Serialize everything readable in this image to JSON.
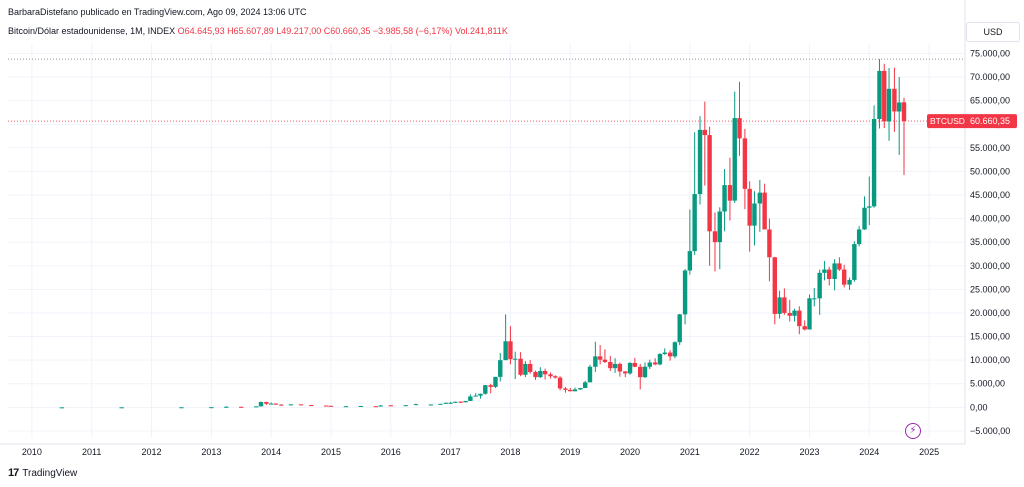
{
  "header": {
    "author_line": "BarbaraDistefano publicado en TradingView.com, Ago 09, 2024 13:06 UTC"
  },
  "legend": {
    "symbol": "Bitcoin/Dólar estadounidense, 1M, INDEX",
    "open": "O64.645,93",
    "high": "H65.607,89",
    "low": "L49.217,00",
    "close": "C60.660,35",
    "change": "−3.985,58 (−6,17%)",
    "volume": "Vol.241,811K"
  },
  "currency_button": "USD",
  "footer": {
    "brand": "TradingView",
    "logo_glyph": "17"
  },
  "price_tag": {
    "label": "BTCUSD",
    "value": "60.660,35",
    "price": 60660
  },
  "colors": {
    "up": "#089981",
    "down": "#f23645",
    "grid": "#f0f3fa",
    "axis_text": "#131722",
    "accent": "#9c27b0"
  },
  "icons": {
    "alert": "lightning-bolt-icon"
  },
  "chart_data": {
    "type": "candlestick",
    "symbol": "BTCUSD",
    "interval": "1M",
    "y_ticks": [
      75000,
      70000,
      65000,
      60000,
      55000,
      50000,
      45000,
      40000,
      35000,
      30000,
      25000,
      20000,
      15000,
      10000,
      5000,
      0,
      -5000
    ],
    "y_tick_labels": [
      "75.000,00",
      "70.000,00",
      "65.000,00",
      "60.000,00",
      "55.000,00",
      "50.000,00",
      "45.000,00",
      "40.000,00",
      "35.000,00",
      "30.000,00",
      "25.000,00",
      "20.000,00",
      "15.000,00",
      "10.000,00",
      "5.000,00",
      "0,00",
      "−5.000,00"
    ],
    "x_ticks": [
      2010,
      2011,
      2012,
      2013,
      2014,
      2015,
      2016,
      2017,
      2018,
      2019,
      2020,
      2021,
      2022,
      2023,
      2024,
      2025
    ],
    "x_tick_labels": [
      "2010",
      "2011",
      "2012",
      "2013",
      "2014",
      "2015",
      "2016",
      "2017",
      "2018",
      "2019",
      "2020",
      "2021",
      "2022",
      "2023",
      "2024",
      "2025"
    ],
    "ylim": [
      -6500,
      77000
    ],
    "xlim": [
      2009.6,
      2025.6
    ],
    "high_line": 73800,
    "candles": [
      {
        "t": 2010.5,
        "o": 0,
        "h": 0,
        "l": 0,
        "c": 0
      },
      {
        "t": 2011.5,
        "o": 1,
        "h": 30,
        "l": 1,
        "c": 5
      },
      {
        "t": 2012.5,
        "o": 5,
        "h": 15,
        "l": 4,
        "c": 13
      },
      {
        "t": 2013.0,
        "o": 13,
        "h": 35,
        "l": 13,
        "c": 33
      },
      {
        "t": 2013.25,
        "o": 93,
        "h": 260,
        "l": 50,
        "c": 120
      },
      {
        "t": 2013.5,
        "o": 110,
        "h": 130,
        "l": 65,
        "c": 100
      },
      {
        "t": 2013.75,
        "o": 140,
        "h": 230,
        "l": 120,
        "c": 200
      },
      {
        "t": 2013.83,
        "o": 200,
        "h": 1240,
        "l": 190,
        "c": 1130
      },
      {
        "t": 2013.92,
        "o": 1130,
        "h": 1165,
        "l": 520,
        "c": 750
      },
      {
        "t": 2014.0,
        "o": 750,
        "h": 1020,
        "l": 700,
        "c": 800
      },
      {
        "t": 2014.08,
        "o": 800,
        "h": 860,
        "l": 530,
        "c": 570
      },
      {
        "t": 2014.17,
        "o": 570,
        "h": 700,
        "l": 440,
        "c": 450
      },
      {
        "t": 2014.33,
        "o": 450,
        "h": 640,
        "l": 430,
        "c": 630
      },
      {
        "t": 2014.5,
        "o": 630,
        "h": 650,
        "l": 580,
        "c": 590
      },
      {
        "t": 2014.67,
        "o": 480,
        "h": 500,
        "l": 380,
        "c": 390
      },
      {
        "t": 2014.92,
        "o": 380,
        "h": 390,
        "l": 300,
        "c": 320
      },
      {
        "t": 2015.0,
        "o": 320,
        "h": 320,
        "l": 170,
        "c": 220
      },
      {
        "t": 2015.25,
        "o": 240,
        "h": 260,
        "l": 220,
        "c": 240
      },
      {
        "t": 2015.5,
        "o": 260,
        "h": 300,
        "l": 250,
        "c": 285
      },
      {
        "t": 2015.75,
        "o": 240,
        "h": 250,
        "l": 230,
        "c": 235
      },
      {
        "t": 2015.83,
        "o": 310,
        "h": 500,
        "l": 300,
        "c": 380
      },
      {
        "t": 2016.0,
        "o": 430,
        "h": 460,
        "l": 360,
        "c": 370
      },
      {
        "t": 2016.25,
        "o": 420,
        "h": 460,
        "l": 410,
        "c": 450
      },
      {
        "t": 2016.42,
        "o": 530,
        "h": 780,
        "l": 520,
        "c": 670
      },
      {
        "t": 2016.67,
        "o": 610,
        "h": 630,
        "l": 570,
        "c": 610
      },
      {
        "t": 2016.83,
        "o": 700,
        "h": 750,
        "l": 690,
        "c": 740
      },
      {
        "t": 2016.92,
        "o": 740,
        "h": 980,
        "l": 730,
        "c": 960
      },
      {
        "t": 2017.0,
        "o": 960,
        "h": 1150,
        "l": 750,
        "c": 970
      },
      {
        "t": 2017.08,
        "o": 970,
        "h": 1200,
        "l": 920,
        "c": 1190
      },
      {
        "t": 2017.17,
        "o": 1190,
        "h": 1290,
        "l": 890,
        "c": 1070
      },
      {
        "t": 2017.25,
        "o": 1070,
        "h": 1350,
        "l": 1060,
        "c": 1350
      },
      {
        "t": 2017.33,
        "o": 1350,
        "h": 2760,
        "l": 1340,
        "c": 2300
      },
      {
        "t": 2017.42,
        "o": 2300,
        "h": 2980,
        "l": 2300,
        "c": 2480
      },
      {
        "t": 2017.5,
        "o": 2480,
        "h": 2920,
        "l": 1830,
        "c": 2870
      },
      {
        "t": 2017.58,
        "o": 2870,
        "h": 4750,
        "l": 2700,
        "c": 4700
      },
      {
        "t": 2017.67,
        "o": 4700,
        "h": 4980,
        "l": 2970,
        "c": 4340
      },
      {
        "t": 2017.75,
        "o": 4340,
        "h": 6470,
        "l": 4100,
        "c": 6450
      },
      {
        "t": 2017.83,
        "o": 6450,
        "h": 11500,
        "l": 5500,
        "c": 10000
      },
      {
        "t": 2017.92,
        "o": 10000,
        "h": 19700,
        "l": 10000,
        "c": 14000
      },
      {
        "t": 2018.0,
        "o": 14000,
        "h": 17200,
        "l": 9100,
        "c": 10200
      },
      {
        "t": 2018.08,
        "o": 10200,
        "h": 11800,
        "l": 6000,
        "c": 10300
      },
      {
        "t": 2018.17,
        "o": 10300,
        "h": 11700,
        "l": 6600,
        "c": 6900
      },
      {
        "t": 2018.25,
        "o": 6900,
        "h": 9800,
        "l": 6400,
        "c": 9200
      },
      {
        "t": 2018.33,
        "o": 9200,
        "h": 10000,
        "l": 7100,
        "c": 7500
      },
      {
        "t": 2018.42,
        "o": 7500,
        "h": 7800,
        "l": 5800,
        "c": 6400
      },
      {
        "t": 2018.5,
        "o": 6400,
        "h": 8500,
        "l": 6200,
        "c": 7700
      },
      {
        "t": 2018.58,
        "o": 7700,
        "h": 8200,
        "l": 5900,
        "c": 7000
      },
      {
        "t": 2018.67,
        "o": 7000,
        "h": 7400,
        "l": 6100,
        "c": 6600
      },
      {
        "t": 2018.75,
        "o": 6600,
        "h": 6800,
        "l": 6100,
        "c": 6300
      },
      {
        "t": 2018.83,
        "o": 6300,
        "h": 6600,
        "l": 3600,
        "c": 4000
      },
      {
        "t": 2018.92,
        "o": 4000,
        "h": 4300,
        "l": 3100,
        "c": 3700
      },
      {
        "t": 2019.0,
        "o": 3700,
        "h": 4100,
        "l": 3400,
        "c": 3400
      },
      {
        "t": 2019.08,
        "o": 3400,
        "h": 4200,
        "l": 3400,
        "c": 3800
      },
      {
        "t": 2019.17,
        "o": 3800,
        "h": 4100,
        "l": 3700,
        "c": 4100
      },
      {
        "t": 2019.25,
        "o": 4100,
        "h": 5600,
        "l": 4100,
        "c": 5300
      },
      {
        "t": 2019.33,
        "o": 5300,
        "h": 9000,
        "l": 5300,
        "c": 8600
      },
      {
        "t": 2019.42,
        "o": 8600,
        "h": 13900,
        "l": 7500,
        "c": 10800
      },
      {
        "t": 2019.5,
        "o": 10800,
        "h": 13200,
        "l": 9100,
        "c": 10100
      },
      {
        "t": 2019.58,
        "o": 10100,
        "h": 12300,
        "l": 9400,
        "c": 9600
      },
      {
        "t": 2019.67,
        "o": 9600,
        "h": 10900,
        "l": 7700,
        "c": 8300
      },
      {
        "t": 2019.75,
        "o": 8300,
        "h": 10400,
        "l": 7300,
        "c": 9200
      },
      {
        "t": 2019.83,
        "o": 9200,
        "h": 9500,
        "l": 6500,
        "c": 7600
      },
      {
        "t": 2019.92,
        "o": 7600,
        "h": 7700,
        "l": 6400,
        "c": 7200
      },
      {
        "t": 2020.0,
        "o": 7200,
        "h": 9600,
        "l": 6900,
        "c": 9400
      },
      {
        "t": 2020.08,
        "o": 9400,
        "h": 10500,
        "l": 8500,
        "c": 8600
      },
      {
        "t": 2020.17,
        "o": 8600,
        "h": 9200,
        "l": 3800,
        "c": 6400
      },
      {
        "t": 2020.25,
        "o": 6400,
        "h": 9500,
        "l": 6200,
        "c": 8600
      },
      {
        "t": 2020.33,
        "o": 8600,
        "h": 10100,
        "l": 8100,
        "c": 9500
      },
      {
        "t": 2020.42,
        "o": 9500,
        "h": 10400,
        "l": 8900,
        "c": 9100
      },
      {
        "t": 2020.5,
        "o": 9100,
        "h": 11500,
        "l": 8900,
        "c": 11300
      },
      {
        "t": 2020.58,
        "o": 11300,
        "h": 12500,
        "l": 11100,
        "c": 11600
      },
      {
        "t": 2020.67,
        "o": 11600,
        "h": 12100,
        "l": 9900,
        "c": 10800
      },
      {
        "t": 2020.75,
        "o": 10800,
        "h": 14000,
        "l": 10400,
        "c": 13800
      },
      {
        "t": 2020.83,
        "o": 13800,
        "h": 19800,
        "l": 13200,
        "c": 19700
      },
      {
        "t": 2020.92,
        "o": 19700,
        "h": 29300,
        "l": 17600,
        "c": 29000
      },
      {
        "t": 2021.0,
        "o": 29000,
        "h": 41900,
        "l": 28100,
        "c": 33100
      },
      {
        "t": 2021.08,
        "o": 33100,
        "h": 58300,
        "l": 32300,
        "c": 45200
      },
      {
        "t": 2021.17,
        "o": 45200,
        "h": 61700,
        "l": 43000,
        "c": 58800
      },
      {
        "t": 2021.25,
        "o": 58800,
        "h": 64800,
        "l": 47000,
        "c": 57700
      },
      {
        "t": 2021.33,
        "o": 57700,
        "h": 59500,
        "l": 30000,
        "c": 37300
      },
      {
        "t": 2021.42,
        "o": 37300,
        "h": 41300,
        "l": 28800,
        "c": 35000
      },
      {
        "t": 2021.5,
        "o": 35000,
        "h": 42400,
        "l": 29300,
        "c": 41500
      },
      {
        "t": 2021.58,
        "o": 41500,
        "h": 50500,
        "l": 37300,
        "c": 47100
      },
      {
        "t": 2021.67,
        "o": 47100,
        "h": 52900,
        "l": 39600,
        "c": 43800
      },
      {
        "t": 2021.75,
        "o": 43800,
        "h": 66900,
        "l": 43300,
        "c": 61300
      },
      {
        "t": 2021.83,
        "o": 61300,
        "h": 69000,
        "l": 53300,
        "c": 57000
      },
      {
        "t": 2021.92,
        "o": 57000,
        "h": 59000,
        "l": 42000,
        "c": 46300
      },
      {
        "t": 2022.0,
        "o": 46300,
        "h": 47900,
        "l": 33000,
        "c": 38500
      },
      {
        "t": 2022.08,
        "o": 38500,
        "h": 45800,
        "l": 34300,
        "c": 43200
      },
      {
        "t": 2022.17,
        "o": 43200,
        "h": 48200,
        "l": 37200,
        "c": 45500
      },
      {
        "t": 2022.25,
        "o": 45500,
        "h": 47400,
        "l": 37700,
        "c": 37700
      },
      {
        "t": 2022.33,
        "o": 37700,
        "h": 40000,
        "l": 26700,
        "c": 31800
      },
      {
        "t": 2022.42,
        "o": 31800,
        "h": 31900,
        "l": 17600,
        "c": 19800
      },
      {
        "t": 2022.5,
        "o": 19800,
        "h": 24700,
        "l": 18800,
        "c": 23300
      },
      {
        "t": 2022.58,
        "o": 23300,
        "h": 25200,
        "l": 19600,
        "c": 20000
      },
      {
        "t": 2022.67,
        "o": 20000,
        "h": 22800,
        "l": 18200,
        "c": 19400
      },
      {
        "t": 2022.75,
        "o": 19400,
        "h": 20900,
        "l": 18200,
        "c": 20500
      },
      {
        "t": 2022.83,
        "o": 20500,
        "h": 21400,
        "l": 15500,
        "c": 17200
      },
      {
        "t": 2022.92,
        "o": 17200,
        "h": 18400,
        "l": 16300,
        "c": 16500
      },
      {
        "t": 2023.0,
        "o": 16500,
        "h": 23900,
        "l": 16500,
        "c": 23100
      },
      {
        "t": 2023.08,
        "o": 23100,
        "h": 25300,
        "l": 21400,
        "c": 23100
      },
      {
        "t": 2023.17,
        "o": 23100,
        "h": 29200,
        "l": 19600,
        "c": 28500
      },
      {
        "t": 2023.25,
        "o": 28500,
        "h": 31000,
        "l": 26900,
        "c": 29200
      },
      {
        "t": 2023.33,
        "o": 29200,
        "h": 29800,
        "l": 25800,
        "c": 27200
      },
      {
        "t": 2023.42,
        "o": 27200,
        "h": 31400,
        "l": 24800,
        "c": 30500
      },
      {
        "t": 2023.5,
        "o": 30500,
        "h": 31800,
        "l": 28900,
        "c": 29200
      },
      {
        "t": 2023.58,
        "o": 29200,
        "h": 30200,
        "l": 25400,
        "c": 26000
      },
      {
        "t": 2023.67,
        "o": 26000,
        "h": 27500,
        "l": 24900,
        "c": 27000
      },
      {
        "t": 2023.75,
        "o": 27000,
        "h": 35200,
        "l": 26600,
        "c": 34600
      },
      {
        "t": 2023.83,
        "o": 34600,
        "h": 38400,
        "l": 34100,
        "c": 37700
      },
      {
        "t": 2023.92,
        "o": 37700,
        "h": 44700,
        "l": 37600,
        "c": 42300
      },
      {
        "t": 2024.0,
        "o": 42300,
        "h": 48900,
        "l": 38600,
        "c": 42600
      },
      {
        "t": 2024.08,
        "o": 42600,
        "h": 64000,
        "l": 42300,
        "c": 61100
      },
      {
        "t": 2024.17,
        "o": 61100,
        "h": 73800,
        "l": 59100,
        "c": 71300
      },
      {
        "t": 2024.25,
        "o": 71300,
        "h": 72800,
        "l": 59200,
        "c": 60600
      },
      {
        "t": 2024.33,
        "o": 60600,
        "h": 71900,
        "l": 56500,
        "c": 67500
      },
      {
        "t": 2024.42,
        "o": 67500,
        "h": 72000,
        "l": 58400,
        "c": 62700
      },
      {
        "t": 2024.5,
        "o": 62700,
        "h": 70000,
        "l": 53500,
        "c": 64600
      },
      {
        "t": 2024.58,
        "o": 64646,
        "h": 65608,
        "l": 49217,
        "c": 60660
      }
    ]
  }
}
